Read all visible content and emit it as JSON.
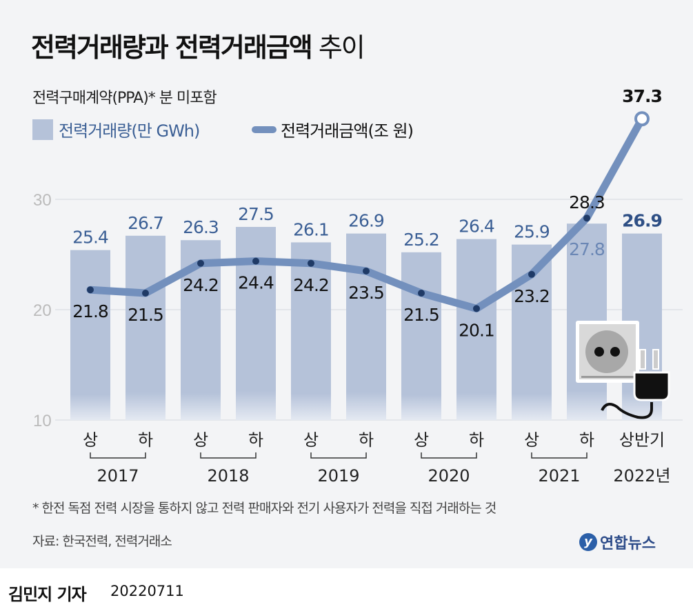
{
  "title_bold": "전력거래량과 전력거래금액",
  "title_rest": " 추이",
  "subtitle": "전력구매계약(PPA)* 분 미포함",
  "legend": {
    "bar": "전력거래량(만 GWh)",
    "line": "전력거래금액(조 원)"
  },
  "note": "* 한전 독점 전력 시장을 통하지 않고 전력 판매자와 전기 사용자가 전력을 직접 거래하는 것",
  "source": "자료: 한국전력, 전력거래소",
  "logo": "연합뉴스",
  "byline": "김민지 기자",
  "date": "20220711",
  "chart_data": {
    "type": "bar+line",
    "categories": [
      "상",
      "하",
      "상",
      "하",
      "상",
      "하",
      "상",
      "하",
      "상",
      "하",
      "상반기"
    ],
    "years": [
      "2017",
      "2018",
      "2019",
      "2020",
      "2021",
      "2022년"
    ],
    "series": [
      {
        "name": "전력거래량(만 GWh)",
        "type": "bar",
        "values": [
          25.4,
          26.7,
          26.3,
          27.5,
          26.1,
          26.9,
          25.2,
          26.4,
          25.9,
          27.8,
          26.9
        ],
        "labels": [
          "25.4",
          "26.7",
          "26.3",
          "27.5",
          "26.1",
          "26.9",
          "25.2",
          "26.4",
          "25.9",
          "27.8",
          "26.9"
        ]
      },
      {
        "name": "전력거래금액(조 원)",
        "type": "line",
        "values": [
          21.8,
          21.5,
          24.2,
          24.4,
          24.2,
          23.5,
          21.5,
          20.1,
          23.2,
          28.3,
          37.3
        ],
        "labels": [
          "21.8",
          "21.5",
          "24.2",
          "24.4",
          "24.2",
          "23.5",
          "21.5",
          "20.1",
          "23.2",
          "28.3",
          "37.3"
        ]
      }
    ],
    "yticks": [
      "10",
      "20",
      "30"
    ],
    "ylim": [
      10,
      38
    ],
    "colors": {
      "bar": "#b5c2d9",
      "line": "#7390bd",
      "bar_label": "#3b5f95"
    }
  }
}
